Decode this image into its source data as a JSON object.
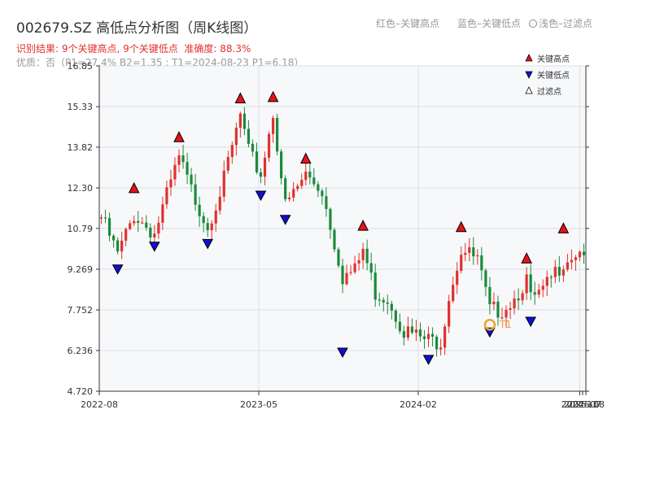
{
  "header": {
    "title": "002679.SZ 高低点分析图（周K线图）",
    "legend_red": "红色–关键高点",
    "legend_blue": "蓝色–关键低点",
    "legend_light": "浅色–过滤点",
    "result_text": "识别结果: 9个关键高点, 9个关键低点",
    "accuracy_text": "准确度: 88.3%",
    "quality_text": "优质：否（P1=27.4%  B2=1.35 ; T1=2024-08-23 P1=6.18）"
  },
  "colors": {
    "up": "#e0312d",
    "down": "#1b8a3c",
    "high_marker": "#e8111a",
    "low_marker": "#1010d0",
    "highlight": "#f0a030",
    "grid": "#dcdfe6",
    "plot_bg": "#f7f8fa"
  },
  "chart_data": {
    "type": "candlestick",
    "ylim": [
      4.72,
      16.85
    ],
    "y_ticks": [
      "4.720",
      "6.236",
      "7.752",
      "9.269",
      "10.79",
      "12.30",
      "13.82",
      "15.33",
      "16.85"
    ],
    "x_ticks": [
      "2022-08",
      "2023-05",
      "2024-02",
      "2024-11",
      "2025-07",
      "2025-08"
    ],
    "legend": [
      {
        "label": "关键高点",
        "marker": "up-triangle-red"
      },
      {
        "label": "关键低点",
        "marker": "down-triangle-blue"
      },
      {
        "label": "过滤点",
        "marker": "up-triangle-white"
      }
    ],
    "highlight_label": "T1",
    "high_points": [
      {
        "week": 8,
        "price": 12.0
      },
      {
        "week": 19,
        "price": 13.9
      },
      {
        "week": 34,
        "price": 15.35
      },
      {
        "week": 42,
        "price": 15.4
      },
      {
        "week": 50,
        "price": 13.1
      },
      {
        "week": 64,
        "price": 10.6
      },
      {
        "week": 88,
        "price": 10.55
      },
      {
        "week": 104,
        "price": 9.38
      },
      {
        "week": 113,
        "price": 10.5
      }
    ],
    "low_points": [
      {
        "week": 4,
        "price": 9.55
      },
      {
        "week": 13,
        "price": 10.4
      },
      {
        "week": 26,
        "price": 10.5
      },
      {
        "week": 39,
        "price": 12.3
      },
      {
        "week": 45,
        "price": 11.4
      },
      {
        "week": 59,
        "price": 6.45
      },
      {
        "week": 80,
        "price": 6.18
      },
      {
        "week": 95,
        "price": 7.2
      },
      {
        "week": 105,
        "price": 7.6
      }
    ],
    "weekly_close_path": [
      [
        0,
        11.2
      ],
      [
        4,
        9.8
      ],
      [
        8,
        11.3
      ],
      [
        13,
        10.6
      ],
      [
        19,
        13.4
      ],
      [
        22,
        12.2
      ],
      [
        26,
        10.9
      ],
      [
        30,
        12.6
      ],
      [
        34,
        15.0
      ],
      [
        36,
        13.6
      ],
      [
        39,
        12.8
      ],
      [
        42,
        15.1
      ],
      [
        45,
        11.6
      ],
      [
        50,
        12.8
      ],
      [
        54,
        12.2
      ],
      [
        59,
        9.0
      ],
      [
        62,
        9.2
      ],
      [
        64,
        10.0
      ],
      [
        67,
        8.4
      ],
      [
        70,
        8.2
      ],
      [
        74,
        7.0
      ],
      [
        78,
        6.7
      ],
      [
        80,
        6.6
      ],
      [
        83,
        6.6
      ],
      [
        85,
        8.3
      ],
      [
        88,
        10.0
      ],
      [
        92,
        9.6
      ],
      [
        95,
        7.7
      ],
      [
        98,
        7.8
      ],
      [
        101,
        8.2
      ],
      [
        104,
        8.9
      ],
      [
        105,
        8.1
      ],
      [
        108,
        8.4
      ],
      [
        110,
        8.9
      ],
      [
        113,
        9.6
      ],
      [
        116,
        9.9
      ],
      [
        118,
        10.0
      ]
    ]
  }
}
